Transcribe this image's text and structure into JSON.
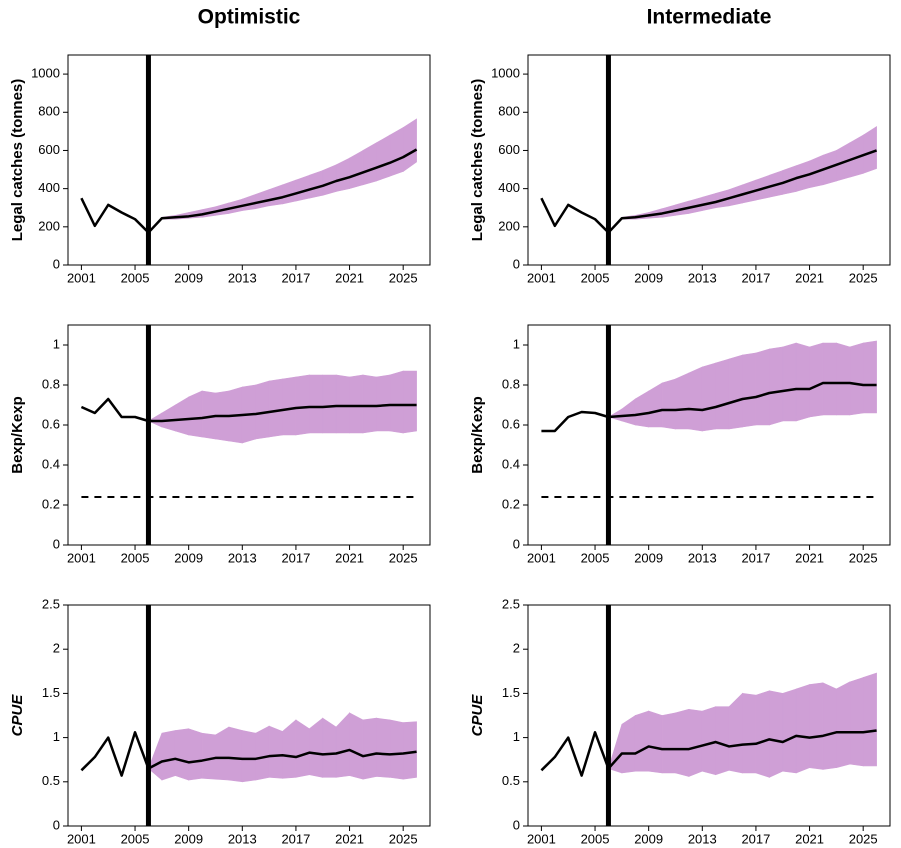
{
  "chart_data": [
    {
      "type": "line",
      "title": "Optimistic",
      "ylabel": "Legal catches (tonnes)",
      "x": [
        2001,
        2002,
        2003,
        2004,
        2005,
        2006,
        2007,
        2008,
        2009,
        2010,
        2011,
        2012,
        2013,
        2014,
        2015,
        2016,
        2017,
        2018,
        2019,
        2020,
        2021,
        2022,
        2023,
        2024,
        2025,
        2026
      ],
      "xlim": [
        2000,
        2027
      ],
      "xticks": [
        2001,
        2005,
        2009,
        2013,
        2017,
        2021,
        2025
      ],
      "ylim": [
        0,
        1100
      ],
      "yticks": [
        0,
        200,
        400,
        600,
        800,
        1000
      ],
      "series": [
        {
          "color": "#000000",
          "values": [
            350,
            205,
            315,
            275,
            240,
            170,
            245,
            250,
            255,
            265,
            280,
            295,
            310,
            325,
            340,
            355,
            375,
            395,
            415,
            440,
            460,
            485,
            510,
            535,
            565,
            605
          ]
        }
      ],
      "band": {
        "color": "#cf9fd6",
        "lower": [
          null,
          null,
          null,
          null,
          null,
          null,
          240,
          240,
          245,
          250,
          260,
          270,
          285,
          295,
          310,
          320,
          335,
          350,
          365,
          385,
          400,
          420,
          440,
          465,
          490,
          540
        ],
        "upper": [
          null,
          null,
          null,
          null,
          null,
          null,
          250,
          260,
          275,
          290,
          305,
          325,
          345,
          370,
          395,
          420,
          445,
          470,
          495,
          525,
          560,
          600,
          640,
          680,
          720,
          765
        ]
      },
      "vline": 2006
    },
    {
      "type": "line",
      "title": "Intermediate",
      "ylabel": "Legal catches (tonnes)",
      "x": [
        2001,
        2002,
        2003,
        2004,
        2005,
        2006,
        2007,
        2008,
        2009,
        2010,
        2011,
        2012,
        2013,
        2014,
        2015,
        2016,
        2017,
        2018,
        2019,
        2020,
        2021,
        2022,
        2023,
        2024,
        2025,
        2026
      ],
      "xlim": [
        2000,
        2027
      ],
      "xticks": [
        2001,
        2005,
        2009,
        2013,
        2017,
        2021,
        2025
      ],
      "ylim": [
        0,
        1100
      ],
      "yticks": [
        0,
        200,
        400,
        600,
        800,
        1000
      ],
      "series": [
        {
          "color": "#000000",
          "values": [
            350,
            205,
            315,
            275,
            240,
            170,
            245,
            250,
            260,
            270,
            285,
            300,
            315,
            330,
            350,
            370,
            390,
            410,
            430,
            455,
            475,
            500,
            525,
            550,
            575,
            600
          ]
        }
      ],
      "band": {
        "color": "#cf9fd6",
        "lower": [
          null,
          null,
          null,
          null,
          null,
          null,
          240,
          240,
          245,
          250,
          260,
          270,
          285,
          300,
          310,
          325,
          340,
          355,
          370,
          385,
          405,
          420,
          440,
          460,
          480,
          505
        ],
        "upper": [
          null,
          null,
          null,
          null,
          null,
          null,
          250,
          260,
          275,
          295,
          315,
          335,
          355,
          375,
          395,
          420,
          445,
          470,
          495,
          520,
          545,
          575,
          600,
          640,
          680,
          725
        ]
      },
      "vline": 2006
    },
    {
      "type": "line",
      "ylabel": "Bexp/Kexp",
      "x": [
        2001,
        2002,
        2003,
        2004,
        2005,
        2006,
        2007,
        2008,
        2009,
        2010,
        2011,
        2012,
        2013,
        2014,
        2015,
        2016,
        2017,
        2018,
        2019,
        2020,
        2021,
        2022,
        2023,
        2024,
        2025,
        2026
      ],
      "xlim": [
        2000,
        2027
      ],
      "xticks": [
        2001,
        2005,
        2009,
        2013,
        2017,
        2021,
        2025
      ],
      "ylim": [
        0,
        1.1
      ],
      "yticks": [
        0,
        0.2,
        0.4,
        0.6,
        0.8,
        1
      ],
      "series": [
        {
          "color": "#000000",
          "values": [
            0.69,
            0.66,
            0.73,
            0.64,
            0.64,
            0.62,
            0.62,
            0.625,
            0.63,
            0.635,
            0.645,
            0.645,
            0.65,
            0.655,
            0.665,
            0.675,
            0.685,
            0.69,
            0.69,
            0.695,
            0.695,
            0.695,
            0.695,
            0.7,
            0.7,
            0.7
          ]
        }
      ],
      "band": {
        "color": "#cf9fd6",
        "lower": [
          null,
          null,
          null,
          null,
          null,
          0.62,
          0.59,
          0.57,
          0.55,
          0.54,
          0.53,
          0.52,
          0.51,
          0.53,
          0.54,
          0.55,
          0.55,
          0.56,
          0.56,
          0.56,
          0.56,
          0.56,
          0.57,
          0.57,
          0.56,
          0.57
        ],
        "upper": [
          null,
          null,
          null,
          null,
          null,
          0.62,
          0.66,
          0.7,
          0.74,
          0.77,
          0.76,
          0.77,
          0.79,
          0.8,
          0.82,
          0.83,
          0.84,
          0.85,
          0.85,
          0.85,
          0.84,
          0.85,
          0.84,
          0.85,
          0.87,
          0.87
        ]
      },
      "vline": 2006,
      "hline": 0.24
    },
    {
      "type": "line",
      "ylabel": "Bexp/Kexp",
      "x": [
        2001,
        2002,
        2003,
        2004,
        2005,
        2006,
        2007,
        2008,
        2009,
        2010,
        2011,
        2012,
        2013,
        2014,
        2015,
        2016,
        2017,
        2018,
        2019,
        2020,
        2021,
        2022,
        2023,
        2024,
        2025,
        2026
      ],
      "xlim": [
        2000,
        2027
      ],
      "xticks": [
        2001,
        2005,
        2009,
        2013,
        2017,
        2021,
        2025
      ],
      "ylim": [
        0,
        1.1
      ],
      "yticks": [
        0,
        0.2,
        0.4,
        0.6,
        0.8,
        1
      ],
      "series": [
        {
          "color": "#000000",
          "values": [
            0.57,
            0.57,
            0.64,
            0.665,
            0.66,
            0.64,
            0.645,
            0.65,
            0.66,
            0.675,
            0.675,
            0.68,
            0.675,
            0.69,
            0.71,
            0.73,
            0.74,
            0.76,
            0.77,
            0.78,
            0.78,
            0.81,
            0.81,
            0.81,
            0.8,
            0.8
          ]
        }
      ],
      "band": {
        "color": "#cf9fd6",
        "lower": [
          null,
          null,
          null,
          null,
          null,
          0.64,
          0.62,
          0.6,
          0.59,
          0.59,
          0.58,
          0.58,
          0.57,
          0.58,
          0.58,
          0.59,
          0.6,
          0.6,
          0.62,
          0.62,
          0.64,
          0.65,
          0.65,
          0.65,
          0.66,
          0.66
        ],
        "upper": [
          null,
          null,
          null,
          null,
          null,
          0.64,
          0.68,
          0.73,
          0.77,
          0.81,
          0.83,
          0.86,
          0.89,
          0.91,
          0.93,
          0.95,
          0.96,
          0.98,
          0.99,
          1.01,
          0.99,
          1.01,
          1.01,
          0.99,
          1.01,
          1.02
        ]
      },
      "vline": 2006,
      "hline": 0.24
    },
    {
      "type": "line",
      "ylabel": "CPUE",
      "x": [
        2001,
        2002,
        2003,
        2004,
        2005,
        2006,
        2007,
        2008,
        2009,
        2010,
        2011,
        2012,
        2013,
        2014,
        2015,
        2016,
        2017,
        2018,
        2019,
        2020,
        2021,
        2022,
        2023,
        2024,
        2025,
        2026
      ],
      "xlim": [
        2000,
        2027
      ],
      "xticks": [
        2001,
        2005,
        2009,
        2013,
        2017,
        2021,
        2025
      ],
      "ylim": [
        0,
        2.5
      ],
      "yticks": [
        0,
        0.5,
        1,
        1.5,
        2,
        2.5
      ],
      "series": [
        {
          "color": "#000000",
          "values": [
            0.63,
            0.78,
            1.0,
            0.57,
            1.06,
            0.65,
            0.73,
            0.76,
            0.72,
            0.74,
            0.77,
            0.77,
            0.76,
            0.76,
            0.79,
            0.8,
            0.78,
            0.83,
            0.81,
            0.82,
            0.86,
            0.79,
            0.82,
            0.81,
            0.82,
            0.84
          ]
        }
      ],
      "band": {
        "color": "#cf9fd6",
        "lower": [
          null,
          null,
          null,
          null,
          null,
          0.65,
          0.52,
          0.57,
          0.52,
          0.54,
          0.53,
          0.52,
          0.5,
          0.52,
          0.55,
          0.54,
          0.55,
          0.58,
          0.55,
          0.55,
          0.57,
          0.53,
          0.56,
          0.55,
          0.53,
          0.55
        ],
        "upper": [
          null,
          null,
          null,
          null,
          null,
          0.65,
          1.05,
          1.08,
          1.1,
          1.05,
          1.03,
          1.12,
          1.08,
          1.05,
          1.13,
          1.07,
          1.2,
          1.1,
          1.22,
          1.12,
          1.28,
          1.2,
          1.22,
          1.2,
          1.17,
          1.18
        ]
      },
      "vline": 2006
    },
    {
      "type": "line",
      "ylabel": "CPUE",
      "x": [
        2001,
        2002,
        2003,
        2004,
        2005,
        2006,
        2007,
        2008,
        2009,
        2010,
        2011,
        2012,
        2013,
        2014,
        2015,
        2016,
        2017,
        2018,
        2019,
        2020,
        2021,
        2022,
        2023,
        2024,
        2025,
        2026
      ],
      "xlim": [
        2000,
        2027
      ],
      "xticks": [
        2001,
        2005,
        2009,
        2013,
        2017,
        2021,
        2025
      ],
      "ylim": [
        0,
        2.5
      ],
      "yticks": [
        0,
        0.5,
        1,
        1.5,
        2,
        2.5
      ],
      "series": [
        {
          "color": "#000000",
          "values": [
            0.63,
            0.78,
            1.0,
            0.57,
            1.06,
            0.65,
            0.82,
            0.82,
            0.9,
            0.87,
            0.87,
            0.87,
            0.91,
            0.95,
            0.9,
            0.92,
            0.93,
            0.98,
            0.95,
            1.02,
            1.0,
            1.02,
            1.06,
            1.06,
            1.06,
            1.08
          ]
        }
      ],
      "band": {
        "color": "#cf9fd6",
        "lower": [
          null,
          null,
          null,
          null,
          null,
          0.65,
          0.6,
          0.62,
          0.62,
          0.6,
          0.6,
          0.56,
          0.62,
          0.58,
          0.63,
          0.6,
          0.6,
          0.55,
          0.62,
          0.6,
          0.66,
          0.64,
          0.66,
          0.7,
          0.68,
          0.68
        ],
        "upper": [
          null,
          null,
          null,
          null,
          null,
          0.65,
          1.15,
          1.25,
          1.3,
          1.25,
          1.28,
          1.32,
          1.3,
          1.35,
          1.35,
          1.5,
          1.48,
          1.53,
          1.5,
          1.55,
          1.6,
          1.62,
          1.55,
          1.63,
          1.68,
          1.73
        ]
      },
      "vline": 2006
    }
  ]
}
